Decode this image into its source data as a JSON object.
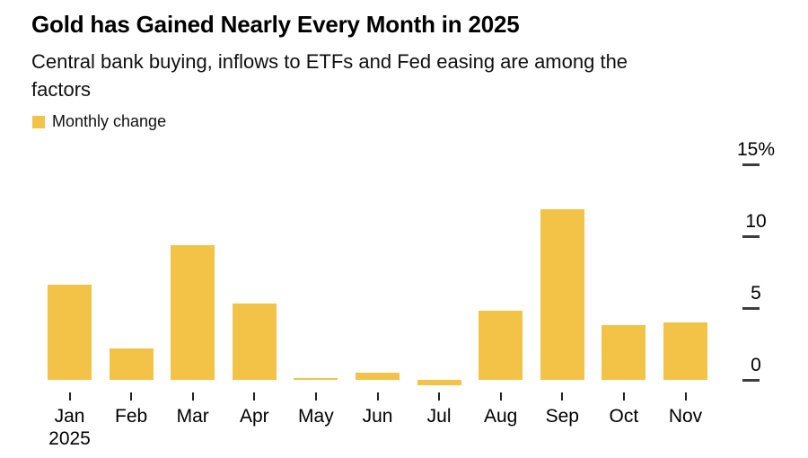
{
  "header": {
    "title": "Gold has Gained Nearly Every Month in 2025",
    "subtitle_lines": [
      "Central bank buying, inflows to ETFs and Fed easing are among the",
      "factors"
    ]
  },
  "legend": {
    "label": "Monthly change"
  },
  "chart_data": {
    "type": "bar",
    "title": "Gold has Gained Nearly Every Month in 2025",
    "subtitle": "Central bank buying, inflows to ETFs and Fed easing are among the factors",
    "series_name": "Monthly change",
    "categories": [
      "Jan",
      "Feb",
      "Mar",
      "Apr",
      "May",
      "Jun",
      "Jul",
      "Aug",
      "Sep",
      "Oct",
      "Nov"
    ],
    "x_year_label": "2025",
    "values": [
      6.6,
      2.2,
      9.4,
      5.3,
      0.1,
      0.5,
      -0.4,
      4.8,
      11.9,
      3.8,
      4.0
    ],
    "unit": "%",
    "bar_color": "#F3C347",
    "yticks": [
      {
        "value": 0,
        "label": "0"
      },
      {
        "value": 5,
        "label": "5"
      },
      {
        "value": 10,
        "label": "10"
      },
      {
        "value": 15,
        "label": "15%"
      }
    ],
    "ylim": [
      -1,
      16
    ],
    "axis_side": "right",
    "grid": false,
    "legend_position": "top-left",
    "xlabel": "",
    "ylabel": ""
  }
}
